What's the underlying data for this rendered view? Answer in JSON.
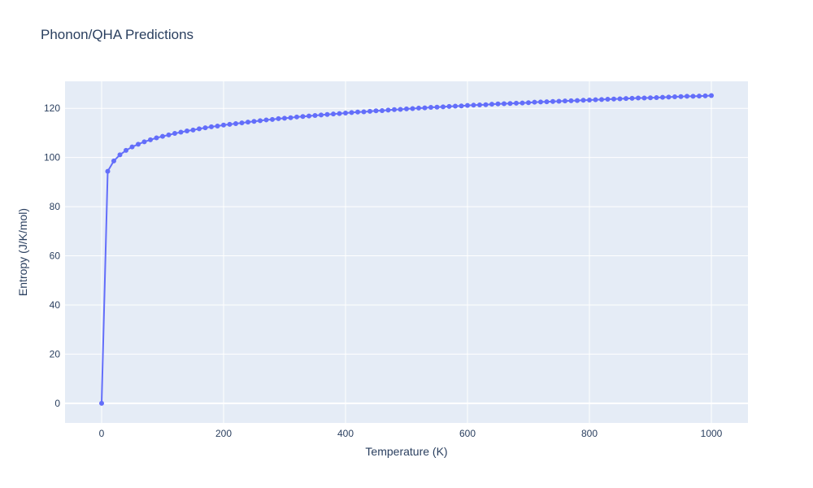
{
  "chart_data": {
    "type": "line",
    "title": "Phonon/QHA Predictions",
    "xlabel": "Temperature (K)",
    "ylabel": "Entropy (J/K/mol)",
    "xlim": [
      -60,
      1060
    ],
    "ylim": [
      -8,
      131
    ],
    "xticks": [
      0,
      200,
      400,
      600,
      800,
      1000
    ],
    "yticks": [
      0,
      20,
      40,
      60,
      80,
      100,
      120
    ],
    "grid": true,
    "colors": {
      "plot_bg": "#e5ecf6",
      "grid": "#ffffff",
      "line": "#636efa",
      "text": "#2a3f5f"
    },
    "series": [
      {
        "mode": "lines+markers",
        "x": [
          0,
          10,
          20,
          30,
          40,
          50,
          60,
          70,
          80,
          90,
          100,
          110,
          120,
          130,
          140,
          150,
          160,
          170,
          180,
          190,
          200,
          210,
          220,
          230,
          240,
          250,
          260,
          270,
          280,
          290,
          300,
          310,
          320,
          330,
          340,
          350,
          360,
          370,
          380,
          390,
          400,
          410,
          420,
          430,
          440,
          450,
          460,
          470,
          480,
          490,
          500,
          510,
          520,
          530,
          540,
          550,
          560,
          570,
          580,
          590,
          600,
          610,
          620,
          630,
          640,
          650,
          660,
          670,
          680,
          690,
          700,
          710,
          720,
          730,
          740,
          750,
          760,
          770,
          780,
          790,
          800,
          810,
          820,
          830,
          840,
          850,
          860,
          870,
          880,
          890,
          900,
          910,
          920,
          930,
          940,
          950,
          960,
          970,
          980,
          990,
          1000
        ],
        "y": [
          0,
          94.4,
          98.6,
          101.1,
          102.9,
          104.3,
          105.4,
          106.4,
          107.2,
          108.0,
          108.6,
          109.2,
          109.8,
          110.3,
          110.8,
          111.2,
          111.7,
          112.1,
          112.5,
          112.8,
          113.2,
          113.5,
          113.8,
          114.1,
          114.4,
          114.7,
          115.0,
          115.3,
          115.5,
          115.8,
          116.0,
          116.2,
          116.5,
          116.7,
          116.9,
          117.1,
          117.3,
          117.5,
          117.7,
          117.9,
          118.1,
          118.3,
          118.5,
          118.6,
          118.8,
          119.0,
          119.1,
          119.3,
          119.5,
          119.6,
          119.8,
          119.9,
          120.1,
          120.2,
          120.4,
          120.5,
          120.6,
          120.8,
          120.9,
          121.0,
          121.2,
          121.3,
          121.4,
          121.5,
          121.7,
          121.8,
          121.9,
          122.0,
          122.1,
          122.2,
          122.3,
          122.5,
          122.6,
          122.7,
          122.8,
          122.9,
          123.0,
          123.1,
          123.2,
          123.3,
          123.4,
          123.5,
          123.6,
          123.7,
          123.8,
          123.9,
          124.0,
          124.1,
          124.2,
          124.2,
          124.3,
          124.4,
          124.5,
          124.6,
          124.7,
          124.8,
          124.9,
          124.9,
          125.0,
          125.1,
          125.2
        ]
      }
    ]
  }
}
